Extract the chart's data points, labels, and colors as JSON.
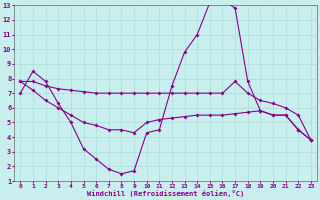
{
  "xlabel": "Windchill (Refroidissement éolien,°C)",
  "xlim": [
    -0.5,
    23.5
  ],
  "ylim": [
    1,
    13
  ],
  "xticks": [
    0,
    1,
    2,
    3,
    4,
    5,
    6,
    7,
    8,
    9,
    10,
    11,
    12,
    13,
    14,
    15,
    16,
    17,
    18,
    19,
    20,
    21,
    22,
    23
  ],
  "yticks": [
    1,
    2,
    3,
    4,
    5,
    6,
    7,
    8,
    9,
    10,
    11,
    12,
    13
  ],
  "background_color": "#c8eeee",
  "grid_color": "#aadddd",
  "line_color": "#880088",
  "line1_x": [
    0,
    1,
    2,
    3,
    4,
    5,
    6,
    7,
    8,
    9,
    10,
    11,
    12,
    13,
    14,
    15,
    16,
    17,
    18,
    19,
    20,
    21,
    22,
    23
  ],
  "line1_y": [
    7.0,
    8.5,
    7.8,
    6.3,
    5.0,
    3.2,
    2.5,
    1.8,
    1.5,
    1.7,
    4.3,
    4.5,
    7.5,
    9.8,
    11.0,
    13.2,
    13.4,
    12.8,
    7.8,
    5.8,
    5.5,
    5.5,
    4.5,
    3.8
  ],
  "line2_x": [
    0,
    1,
    2,
    3,
    4,
    5,
    6,
    7,
    8,
    9,
    10,
    11,
    12,
    13,
    14,
    15,
    16,
    17,
    18,
    19,
    20,
    21,
    22,
    23
  ],
  "line2_y": [
    7.8,
    7.8,
    7.5,
    7.3,
    7.2,
    7.1,
    7.0,
    7.0,
    7.0,
    7.0,
    7.0,
    7.0,
    7.0,
    7.0,
    7.0,
    7.0,
    7.0,
    7.8,
    7.0,
    6.5,
    6.3,
    6.0,
    5.5,
    3.8
  ],
  "line3_x": [
    0,
    1,
    2,
    3,
    4,
    5,
    6,
    7,
    8,
    9,
    10,
    11,
    12,
    13,
    14,
    15,
    16,
    17,
    18,
    19,
    20,
    21,
    22,
    23
  ],
  "line3_y": [
    7.8,
    7.2,
    6.5,
    6.0,
    5.5,
    5.0,
    4.8,
    4.5,
    4.5,
    4.3,
    5.0,
    5.2,
    5.3,
    5.4,
    5.5,
    5.5,
    5.5,
    5.6,
    5.7,
    5.8,
    5.5,
    5.5,
    4.5,
    3.8
  ]
}
